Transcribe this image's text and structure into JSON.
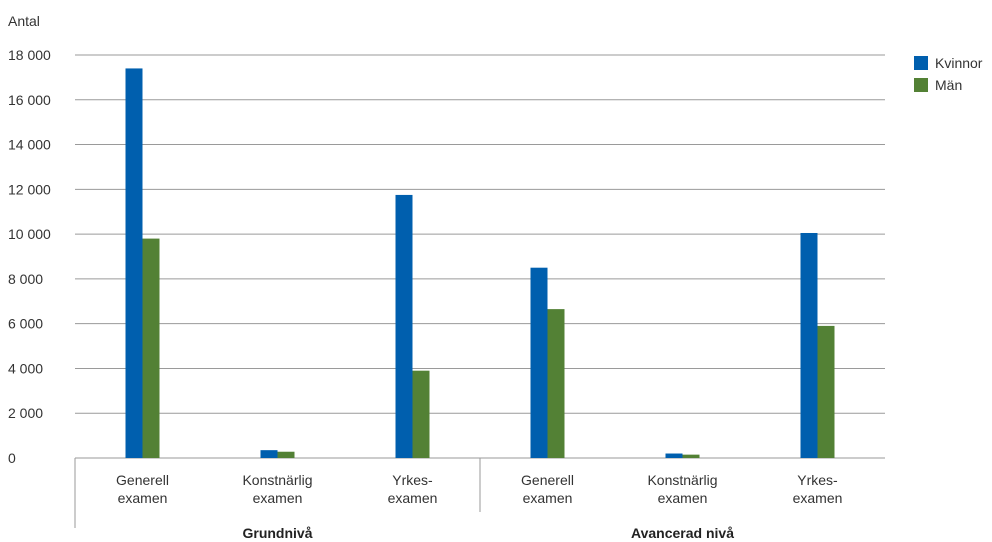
{
  "chart_data": {
    "type": "bar",
    "ylabel": "Antal",
    "ylim": [
      0,
      18000
    ],
    "yticks": [
      0,
      2000,
      4000,
      6000,
      8000,
      10000,
      12000,
      14000,
      16000,
      18000
    ],
    "ytick_labels": [
      "0",
      "2 000",
      "4 000",
      "6 000",
      "8 000",
      "10 000",
      "12 000",
      "14 000",
      "16 000",
      "18 000"
    ],
    "grid": true,
    "legend_position": "top-right",
    "groups": [
      {
        "label": "Grundnivå",
        "categories": [
          [
            "Generell",
            "examen"
          ],
          [
            "Konstnärlig",
            "examen"
          ],
          [
            "Yrkes-",
            "examen"
          ]
        ]
      },
      {
        "label": "Avancerad nivå",
        "categories": [
          [
            "Generell",
            "examen"
          ],
          [
            "Konstnärlig",
            "examen"
          ],
          [
            "Yrkes-",
            "examen"
          ]
        ]
      }
    ],
    "series": [
      {
        "name": "Kvinnor",
        "color": "#005fae",
        "values": [
          17400,
          350,
          11750,
          8500,
          200,
          10050
        ]
      },
      {
        "name": "Män",
        "color": "#538135",
        "values": [
          9800,
          280,
          3900,
          6650,
          150,
          5900
        ]
      }
    ]
  }
}
